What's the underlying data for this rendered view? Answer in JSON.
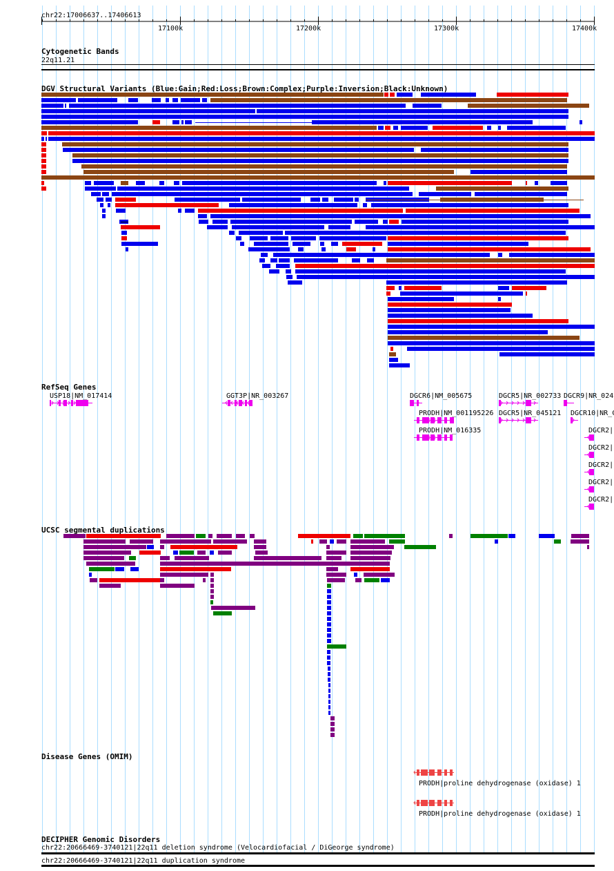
{
  "region": "chr22:17006637..17406613",
  "ruler": {
    "ticks": [
      "17100k",
      "17200k",
      "17300k",
      "17400k"
    ]
  },
  "colors": {
    "gain": "#0000ee",
    "loss": "#ee0000",
    "complex": "#8b4513",
    "purple": "#800080",
    "green": "#008000",
    "gene": "#ee00ee",
    "omim": "#ee4444",
    "grid": "#aaddff"
  },
  "tracks": {
    "cyto": {
      "title": "Cytogenetic Bands",
      "band": "22q11.21"
    },
    "dgv": {
      "title": "DGV Structural Variants (Blue:Gain;Red:Loss;Brown:Complex;Purple:Inversion;Black:Unknown)"
    },
    "refseq": {
      "title": "RefSeq Genes",
      "labels": [
        "USP18|NM_017414",
        "GGT3P|NR_003267",
        "DGCR6|NM_005675",
        "PRODH|NM_001195226",
        "PRODH|NM_016335",
        "DGCR5|NR_002733",
        "DGCR5|NR_045121",
        "DGCR9|NR_024",
        "DGCR10|NR_C",
        "DGCR2|",
        "DGCR2|",
        "DGCR2|",
        "DGCR2|",
        "DGCR2|"
      ]
    },
    "segdup": {
      "title": "UCSC segmental duplications"
    },
    "omim": {
      "title": "Disease Genes (OMIM)",
      "labels": [
        "PRODH|proline dehydrogenase (oxidase) 1",
        "PRODH|proline dehydrogenase (oxidase) 1"
      ]
    },
    "decipher": {
      "title": "DECIPHER Genomic Disorders",
      "labels": [
        "chr22:20666469-3740121|22q11 deletion syndrome (Velocardiofacial / DiGeorge syndrome)",
        "chr22:20666469-3740121|22q11 duplication syndrome"
      ]
    }
  }
}
